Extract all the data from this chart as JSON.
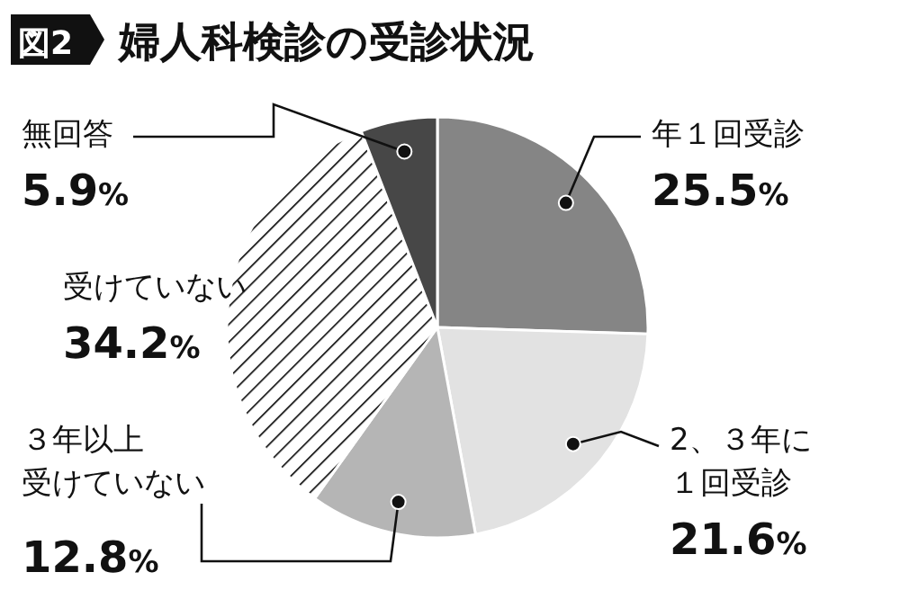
{
  "chart_data": {
    "type": "pie",
    "title": "婦人科検診の受診状況",
    "annotations": [
      "図2"
    ],
    "categories": [
      "年１回受診",
      "2、３年に１回受診",
      "３年以上受けていない",
      "受けていない",
      "無回答"
    ],
    "values": [
      25.5,
      21.6,
      12.8,
      34.2,
      5.9
    ],
    "value_labels": [
      "25.5%",
      "21.6%",
      "12.8%",
      "34.2%",
      "5.9%"
    ],
    "colors": [
      "#858585",
      "#e2e2e2",
      "#b5b5b5",
      "#ffffff",
      "#474747"
    ]
  }
}
